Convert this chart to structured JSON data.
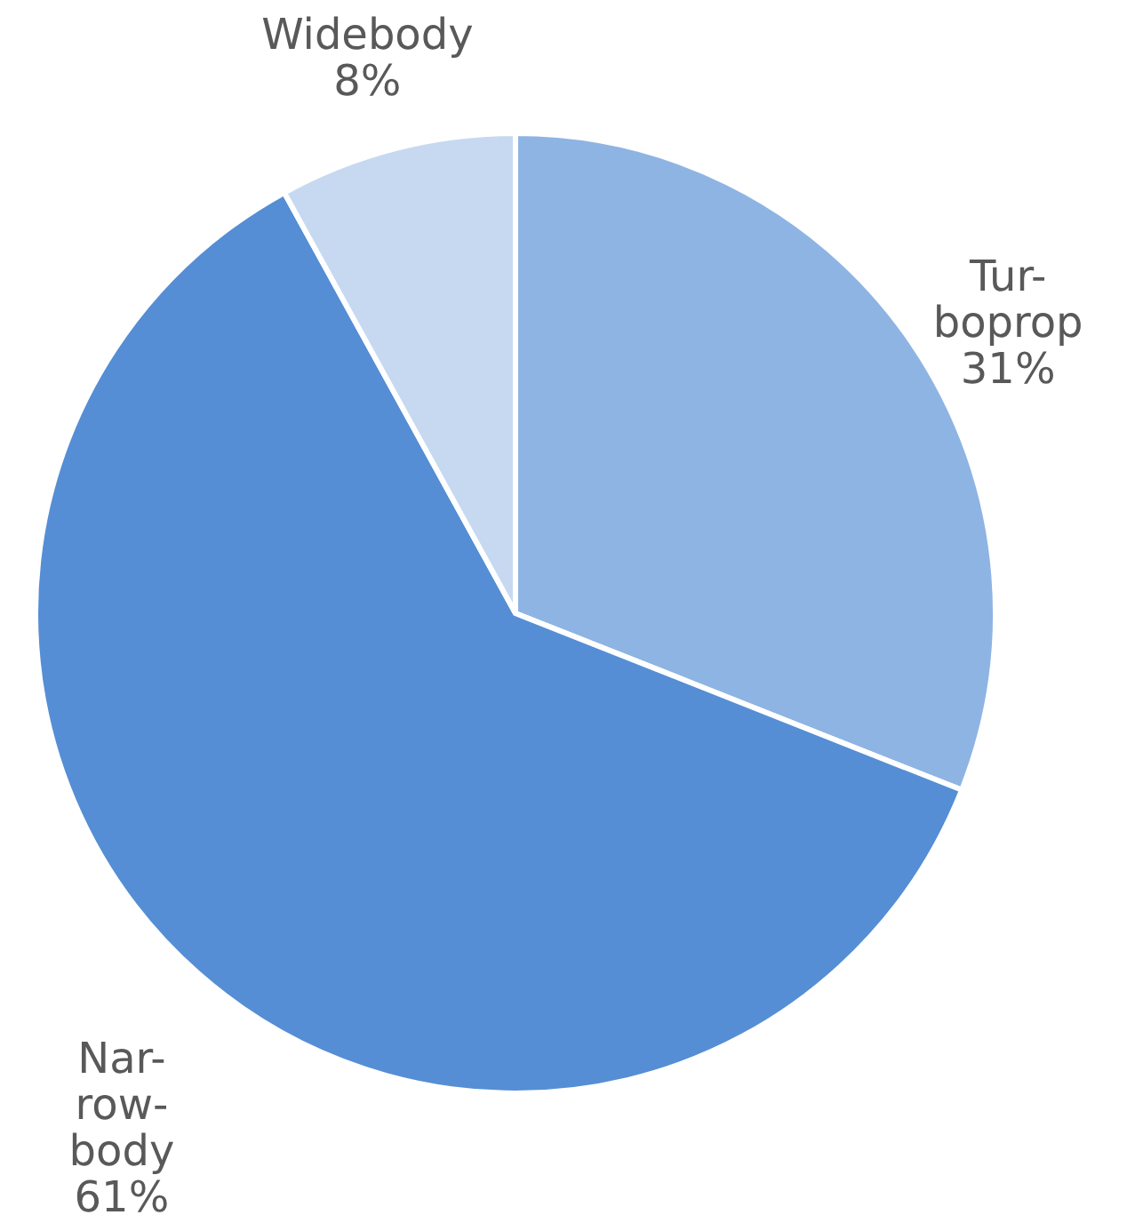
{
  "chart_data": {
    "type": "pie",
    "categories": [
      "Tur-boprop",
      "Nar-row-body",
      "Widebody"
    ],
    "values": [
      31,
      61,
      8
    ],
    "value_labels": [
      "31%",
      "61%",
      "8%"
    ],
    "colors": [
      "#8eb4e3",
      "#558ed5",
      "#c6d9f1"
    ]
  }
}
